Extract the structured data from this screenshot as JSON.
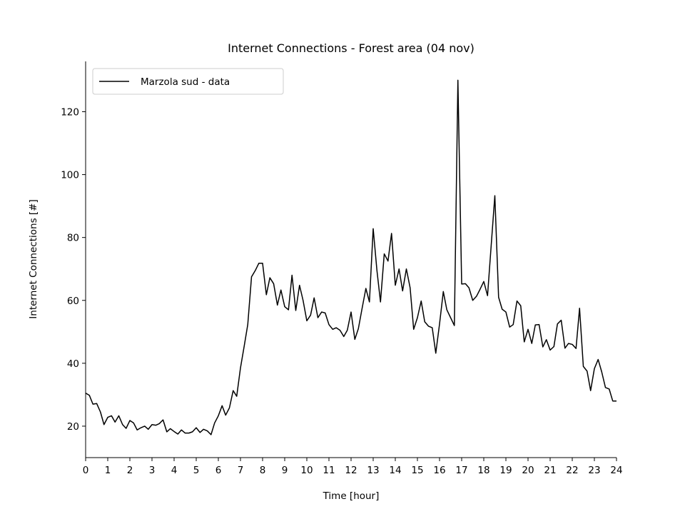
{
  "chart_data": {
    "type": "line",
    "title": "Internet Connections - Forest area (04 nov)",
    "xlabel": "Time [hour]",
    "ylabel": "Internet Connections [#]",
    "xlim": [
      0,
      24
    ],
    "ylim": [
      10,
      136
    ],
    "x_ticks": [
      0,
      1,
      2,
      3,
      4,
      5,
      6,
      7,
      8,
      9,
      10,
      11,
      12,
      13,
      14,
      15,
      16,
      17,
      18,
      19,
      20,
      21,
      22,
      23,
      24
    ],
    "y_ticks": [
      20,
      40,
      60,
      80,
      100,
      120
    ],
    "grid": false,
    "legend_position": "top-left",
    "series": [
      {
        "name": "Marzola sud - data",
        "color": "#000000",
        "points": [
          [
            0,
            30.5
          ],
          [
            0.17,
            29.8
          ],
          [
            0.33,
            27
          ],
          [
            0.5,
            27.2
          ],
          [
            0.67,
            24.5
          ],
          [
            0.83,
            20.5
          ],
          [
            1,
            22.8
          ],
          [
            1.17,
            23.3
          ],
          [
            1.33,
            21.3
          ],
          [
            1.5,
            23.3
          ],
          [
            1.67,
            20.5
          ],
          [
            1.83,
            19.3
          ],
          [
            2,
            21.8
          ],
          [
            2.17,
            21
          ],
          [
            2.33,
            18.8
          ],
          [
            2.5,
            19.5
          ],
          [
            2.67,
            20
          ],
          [
            2.83,
            19
          ],
          [
            3,
            20.5
          ],
          [
            3.17,
            20.3
          ],
          [
            3.33,
            20.8
          ],
          [
            3.5,
            22
          ],
          [
            3.67,
            18.2
          ],
          [
            3.83,
            19.2
          ],
          [
            4,
            18.3
          ],
          [
            4.17,
            17.5
          ],
          [
            4.33,
            18.8
          ],
          [
            4.5,
            17.8
          ],
          [
            4.67,
            17.8
          ],
          [
            4.83,
            18.2
          ],
          [
            5,
            19.5
          ],
          [
            5.17,
            18
          ],
          [
            5.33,
            19
          ],
          [
            5.5,
            18.5
          ],
          [
            5.67,
            17.3
          ],
          [
            5.83,
            21
          ],
          [
            6,
            23.3
          ],
          [
            6.17,
            26.5
          ],
          [
            6.33,
            23.5
          ],
          [
            6.5,
            25.8
          ],
          [
            6.67,
            31.3
          ],
          [
            6.83,
            29.5
          ],
          [
            7,
            38.5
          ],
          [
            7.17,
            45.5
          ],
          [
            7.33,
            52.3
          ],
          [
            7.5,
            67.5
          ],
          [
            7.67,
            69.5
          ],
          [
            7.83,
            71.8
          ],
          [
            8,
            71.8
          ],
          [
            8.17,
            61.8
          ],
          [
            8.33,
            67.2
          ],
          [
            8.5,
            65.3
          ],
          [
            8.67,
            58.5
          ],
          [
            8.83,
            63.3
          ],
          [
            9,
            58
          ],
          [
            9.17,
            57
          ],
          [
            9.33,
            68
          ],
          [
            9.5,
            56.8
          ],
          [
            9.67,
            64.8
          ],
          [
            9.83,
            60
          ],
          [
            10,
            53.5
          ],
          [
            10.17,
            55.3
          ],
          [
            10.33,
            60.8
          ],
          [
            10.5,
            54.5
          ],
          [
            10.67,
            56.3
          ],
          [
            10.83,
            56
          ],
          [
            11,
            52.3
          ],
          [
            11.17,
            50.8
          ],
          [
            11.33,
            51.3
          ],
          [
            11.5,
            50.5
          ],
          [
            11.67,
            48.5
          ],
          [
            11.83,
            50.5
          ],
          [
            12,
            56.3
          ],
          [
            12.17,
            47.6
          ],
          [
            12.33,
            51
          ],
          [
            12.5,
            57.5
          ],
          [
            12.67,
            63.8
          ],
          [
            12.83,
            59.5
          ],
          [
            13,
            82.8
          ],
          [
            13.17,
            69.5
          ],
          [
            13.33,
            59.5
          ],
          [
            13.5,
            74.8
          ],
          [
            13.67,
            72.5
          ],
          [
            13.83,
            81.3
          ],
          [
            14,
            64.8
          ],
          [
            14.17,
            70
          ],
          [
            14.33,
            63
          ],
          [
            14.5,
            70
          ],
          [
            14.67,
            64
          ],
          [
            14.83,
            50.8
          ],
          [
            15,
            54.5
          ],
          [
            15.17,
            59.8
          ],
          [
            15.33,
            53.2
          ],
          [
            15.5,
            51.8
          ],
          [
            15.67,
            51.3
          ],
          [
            15.83,
            43.2
          ],
          [
            16,
            52.5
          ],
          [
            16.17,
            62.8
          ],
          [
            16.33,
            57
          ],
          [
            16.5,
            54.5
          ],
          [
            16.67,
            52
          ],
          [
            16.83,
            130
          ],
          [
            17,
            65.2
          ],
          [
            17.17,
            65.3
          ],
          [
            17.33,
            64
          ],
          [
            17.5,
            60
          ],
          [
            17.67,
            61.3
          ],
          [
            17.83,
            63.5
          ],
          [
            18,
            66
          ],
          [
            18.17,
            61.5
          ],
          [
            18.33,
            77
          ],
          [
            18.5,
            93.3
          ],
          [
            18.67,
            61
          ],
          [
            18.83,
            57.2
          ],
          [
            19,
            56.3
          ],
          [
            19.17,
            51.5
          ],
          [
            19.33,
            52.3
          ],
          [
            19.5,
            59.8
          ],
          [
            19.67,
            58.3
          ],
          [
            19.83,
            46.8
          ],
          [
            20,
            50.8
          ],
          [
            20.17,
            46.3
          ],
          [
            20.33,
            52.2
          ],
          [
            20.5,
            52.3
          ],
          [
            20.67,
            45.2
          ],
          [
            20.83,
            47.5
          ],
          [
            21,
            44.2
          ],
          [
            21.17,
            45.3
          ],
          [
            21.33,
            52.5
          ],
          [
            21.5,
            53.7
          ],
          [
            21.67,
            44.8
          ],
          [
            21.83,
            46.3
          ],
          [
            22,
            46
          ],
          [
            22.17,
            44.7
          ],
          [
            22.33,
            57.5
          ],
          [
            22.5,
            39
          ],
          [
            22.67,
            37.5
          ],
          [
            22.83,
            31.3
          ],
          [
            23,
            38.3
          ],
          [
            23.17,
            41.2
          ],
          [
            23.33,
            37.3
          ],
          [
            23.5,
            32.3
          ],
          [
            23.67,
            31.8
          ],
          [
            23.83,
            28
          ],
          [
            24,
            28
          ]
        ]
      }
    ]
  }
}
